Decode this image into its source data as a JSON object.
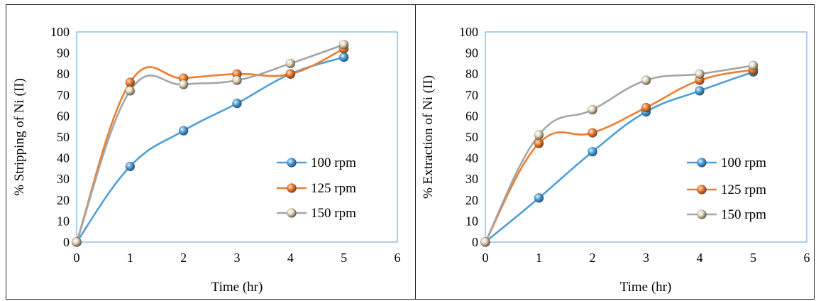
{
  "chart_data": [
    {
      "type": "line",
      "ylabel": "% Stripping of Ni (II)",
      "xlabel": "Time (hr)",
      "xlim": [
        0,
        6
      ],
      "ylim": [
        0,
        100
      ],
      "xticks": [
        "0",
        "1",
        "2",
        "3",
        "4",
        "5",
        "6"
      ],
      "yticks": [
        "0",
        "10",
        "20",
        "30",
        "40",
        "50",
        "60",
        "70",
        "80",
        "90",
        "100"
      ],
      "legend_position": "right",
      "x": [
        0,
        1,
        2,
        3,
        4,
        5
      ],
      "series": [
        {
          "name": "100 rpm",
          "color": "#4e9fd6",
          "values": [
            0,
            36,
            53,
            66,
            80,
            88
          ]
        },
        {
          "name": "125 rpm",
          "color": "#ed7d31",
          "values": [
            0,
            76,
            78,
            80,
            80,
            92
          ]
        },
        {
          "name": "150 rpm",
          "color": "#a5a5a5",
          "values": [
            0,
            72,
            75,
            77,
            85,
            94
          ]
        }
      ]
    },
    {
      "type": "line",
      "ylabel": "% Extraction of Ni (II)",
      "xlabel": "Time (hr)",
      "xlim": [
        0,
        6
      ],
      "ylim": [
        0,
        100
      ],
      "xticks": [
        "0",
        "1",
        "2",
        "3",
        "4",
        "5",
        "6"
      ],
      "yticks": [
        "0",
        "10",
        "20",
        "30",
        "40",
        "50",
        "60",
        "70",
        "80",
        "90",
        "100"
      ],
      "legend_position": "right",
      "x": [
        0,
        1,
        2,
        3,
        4,
        5
      ],
      "series": [
        {
          "name": "100 rpm",
          "color": "#4e9fd6",
          "values": [
            0,
            21,
            43,
            62,
            72,
            81
          ]
        },
        {
          "name": "125 rpm",
          "color": "#ed7d31",
          "values": [
            0,
            47,
            52,
            64,
            77,
            82
          ]
        },
        {
          "name": "150 rpm",
          "color": "#a5a5a5",
          "values": [
            0,
            51,
            63,
            77,
            80,
            84
          ]
        }
      ]
    }
  ]
}
